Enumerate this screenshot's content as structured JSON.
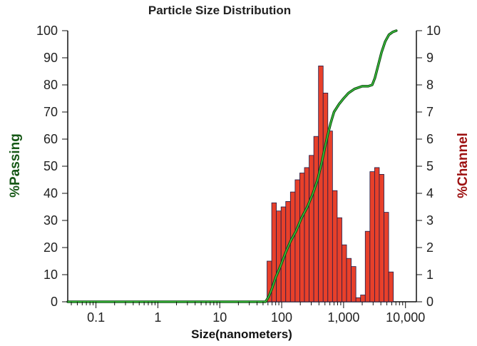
{
  "chart_data": {
    "type": "bar",
    "title": "Particle Size Distribution",
    "xlabel": "Size(nanometers)",
    "ylabel_left": "%Passing",
    "ylabel_right": "%Channel",
    "x_scale": "log",
    "xlim": [
      0.035,
      15000
    ],
    "ylim_left": [
      0,
      100
    ],
    "ylim_right": [
      0,
      10
    ],
    "x_ticks": [
      0.1,
      1,
      10,
      100,
      1000,
      10000
    ],
    "x_tick_labels": [
      "0.1",
      "1",
      "10",
      "100",
      "1,000",
      "10,000"
    ],
    "y_left_ticks": [
      0,
      10,
      20,
      30,
      40,
      50,
      60,
      70,
      80,
      90,
      100
    ],
    "y_left_tick_labels": [
      "0",
      "10",
      "20",
      "30",
      "40",
      "50",
      "60",
      "70",
      "80",
      "90",
      "100"
    ],
    "y_right_ticks": [
      0,
      1,
      2,
      3,
      4,
      5,
      6,
      7,
      8,
      9,
      10
    ],
    "y_right_tick_labels": [
      "0",
      "1",
      "2",
      "3",
      "4",
      "5",
      "6",
      "7",
      "8",
      "9",
      "10"
    ],
    "colors": {
      "bars": "#e8402a",
      "bar_edge": "#1c1c4a",
      "passing_line_dark": "#0d4a12",
      "passing_line_light": "#3ec63e",
      "left_axis_label": "#165816",
      "right_axis_label": "#9c1010",
      "frame": "#111111"
    },
    "series": [
      {
        "name": "%Channel",
        "axis": "right",
        "type": "bar",
        "bins_start": 58,
        "bins_step": 1.19,
        "values": [
          1.5,
          3.65,
          3.35,
          3.5,
          3.7,
          4.05,
          4.5,
          4.75,
          4.95,
          5.4,
          6.1,
          8.7,
          7.7,
          6.3,
          4.1,
          3.1,
          2.1,
          1.6,
          1.3,
          0.15,
          0.25,
          2.6,
          4.8,
          4.95,
          4.7,
          3.3,
          1.1
        ]
      },
      {
        "name": "%Passing",
        "axis": "left",
        "type": "line",
        "x": [
          0.035,
          55,
          62,
          70,
          80,
          95,
          115,
          140,
          170,
          210,
          260,
          320,
          380,
          440,
          500,
          560,
          620,
          700,
          850,
          1000,
          1200,
          1500,
          2000,
          2500,
          2900,
          3200,
          3600,
          4100,
          4700,
          5400,
          6200,
          7100
        ],
        "values": [
          0,
          0,
          2,
          5,
          9,
          13,
          18,
          22.5,
          26,
          31,
          35,
          40,
          45,
          51,
          57,
          62,
          66,
          70,
          73,
          75,
          77,
          78.5,
          79.5,
          79.5,
          80,
          82.5,
          87,
          92,
          96,
          98.5,
          99.5,
          100
        ]
      }
    ]
  }
}
